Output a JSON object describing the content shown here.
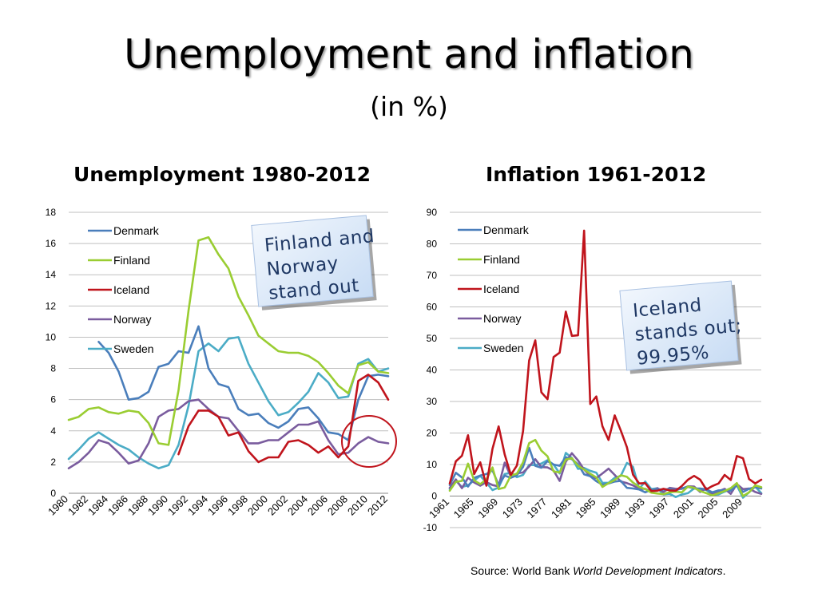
{
  "slide": {
    "title": "Unemployment and inflation",
    "subtitle": "(in %)"
  },
  "source": {
    "prefix": "Source: World Bank ",
    "italic": "World Development Indicators",
    "suffix": "."
  },
  "colors": {
    "Denmark": "#4a7ebb",
    "Finland": "#9acd32",
    "Iceland": "#c0141c",
    "Norway": "#7a5c9e",
    "Sweden": "#4bacc6",
    "grid": "#bfbfbf",
    "callout_bg": "#c8dcf4",
    "circle": "#c0141c"
  },
  "chart_data": [
    {
      "type": "line",
      "title": "Unemployment 1980-2012",
      "ylim": [
        0,
        18
      ],
      "yticks": [
        0,
        2,
        4,
        6,
        8,
        10,
        12,
        14,
        16,
        18
      ],
      "xticks": [
        "1980",
        "1982",
        "1984",
        "1986",
        "1988",
        "1990",
        "1992",
        "1994",
        "1996",
        "1998",
        "2000",
        "2002",
        "2004",
        "2006",
        "2008",
        "2010",
        "2012"
      ],
      "x_start": 1980,
      "x_end": 2012,
      "grid": true,
      "legend": "top-left",
      "annotation": "Finland and Norway stand out",
      "series": [
        {
          "name": "Denmark",
          "start": 1983,
          "values": [
            9.7,
            9.0,
            7.8,
            6.0,
            6.1,
            6.5,
            8.1,
            8.3,
            9.1,
            9.0,
            10.7,
            8.0,
            7.0,
            6.8,
            5.4,
            5.0,
            5.1,
            4.5,
            4.2,
            4.6,
            5.4,
            5.5,
            4.8,
            3.9,
            3.8,
            3.4,
            6.0,
            7.5,
            7.6,
            7.5
          ]
        },
        {
          "name": "Finland",
          "start": 1980,
          "values": [
            4.7,
            4.9,
            5.4,
            5.5,
            5.2,
            5.1,
            5.3,
            5.2,
            4.5,
            3.2,
            3.1,
            6.6,
            11.7,
            16.2,
            16.4,
            15.3,
            14.4,
            12.6,
            11.4,
            10.1,
            9.6,
            9.1,
            9.0,
            9.0,
            8.8,
            8.4,
            7.7,
            6.9,
            6.4,
            8.2,
            8.4,
            7.8,
            7.7
          ]
        },
        {
          "name": "Iceland",
          "start": 1991,
          "values": [
            2.5,
            4.3,
            5.3,
            5.3,
            4.9,
            3.7,
            3.9,
            2.7,
            2.0,
            2.3,
            2.3,
            3.3,
            3.4,
            3.1,
            2.6,
            3.0,
            2.3,
            3.0,
            7.2,
            7.6,
            7.1,
            6.0
          ]
        },
        {
          "name": "Norway",
          "start": 1980,
          "values": [
            1.6,
            2.0,
            2.6,
            3.4,
            3.2,
            2.6,
            1.9,
            2.1,
            3.2,
            4.9,
            5.3,
            5.4,
            5.9,
            6.0,
            5.4,
            4.9,
            4.8,
            4.0,
            3.2,
            3.2,
            3.4,
            3.4,
            3.9,
            4.4,
            4.4,
            4.6,
            3.4,
            2.5,
            2.6,
            3.2,
            3.6,
            3.3,
            3.2
          ]
        },
        {
          "name": "Sweden",
          "start": 1980,
          "values": [
            2.2,
            2.8,
            3.5,
            3.9,
            3.5,
            3.1,
            2.8,
            2.3,
            1.9,
            1.6,
            1.8,
            3.1,
            5.6,
            9.1,
            9.6,
            9.1,
            9.9,
            10.0,
            8.3,
            7.1,
            5.9,
            5.0,
            5.2,
            5.8,
            6.5,
            7.7,
            7.1,
            6.1,
            6.2,
            8.3,
            8.6,
            7.8,
            8.0
          ]
        }
      ]
    },
    {
      "type": "line",
      "title": "Inflation 1961-2012",
      "ylim": [
        -10,
        90
      ],
      "yticks": [
        -10,
        0,
        10,
        20,
        30,
        40,
        50,
        60,
        70,
        80,
        90
      ],
      "xticks": [
        "1961",
        "1965",
        "1969",
        "1973",
        "1977",
        "1981",
        "1985",
        "1989",
        "1993",
        "1997",
        "2001",
        "2005",
        "2009"
      ],
      "x_start": 1961,
      "x_end": 2012,
      "grid": true,
      "legend": "top-left",
      "annotation": "Iceland stands out; 99.95%",
      "series": [
        {
          "name": "Denmark",
          "start": 1961,
          "values": [
            3.5,
            7.4,
            5.9,
            3.0,
            5.8,
            6.5,
            7.0,
            8.2,
            3.5,
            6.5,
            5.8,
            6.6,
            9.3,
            15.3,
            9.6,
            9.0,
            11.1,
            10.0,
            9.6,
            12.3,
            11.7,
            10.1,
            6.9,
            6.3,
            4.7,
            3.6,
            4.0,
            4.6,
            4.8,
            2.6,
            2.4,
            2.1,
            1.2,
            2.0,
            2.1,
            2.1,
            2.2,
            1.8,
            2.5,
            2.9,
            2.4,
            2.4,
            2.1,
            1.2,
            1.8,
            1.9,
            1.7,
            3.4,
            1.3,
            2.3,
            2.8,
            2.4
          ]
        },
        {
          "name": "Finland",
          "start": 1961,
          "values": [
            1.7,
            4.5,
            4.8,
            10.3,
            5.0,
            3.8,
            5.3,
            9.1,
            2.2,
            2.7,
            6.5,
            7.1,
            10.7,
            16.8,
            17.8,
            14.4,
            12.6,
            7.8,
            7.5,
            11.6,
            12.0,
            9.6,
            8.4,
            7.1,
            5.9,
            2.9,
            4.1,
            5.1,
            6.6,
            6.1,
            4.3,
            2.9,
            2.2,
            1.1,
            0.8,
            0.6,
            1.2,
            1.4,
            1.2,
            3.0,
            2.6,
            1.6,
            0.9,
            0.2,
            0.9,
            1.6,
            2.5,
            4.1,
            0.0,
            1.2,
            3.4,
            2.8
          ]
        },
        {
          "name": "Iceland",
          "start": 1961,
          "values": [
            4.0,
            11.0,
            12.8,
            19.3,
            7.0,
            10.7,
            3.3,
            15.0,
            22.1,
            13.2,
            6.7,
            9.7,
            20.6,
            43.0,
            49.4,
            32.9,
            30.7,
            44.1,
            45.5,
            58.5,
            50.8,
            51.0,
            84.2,
            29.2,
            31.6,
            22.1,
            17.8,
            25.6,
            20.8,
            15.5,
            6.8,
            4.0,
            4.1,
            1.6,
            1.7,
            2.3,
            1.8,
            1.7,
            3.2,
            5.2,
            6.4,
            5.2,
            2.1,
            3.2,
            4.0,
            6.7,
            5.1,
            12.7,
            12.0,
            5.4,
            4.0,
            5.2
          ]
        },
        {
          "name": "Norway",
          "start": 1961,
          "values": [
            2.6,
            5.3,
            2.5,
            5.8,
            4.3,
            3.3,
            4.4,
            3.5,
            3.1,
            10.6,
            6.2,
            7.2,
            7.5,
            9.4,
            11.7,
            9.2,
            9.1,
            8.1,
            4.8,
            10.9,
            13.6,
            11.3,
            8.4,
            6.3,
            5.7,
            7.2,
            8.7,
            6.7,
            4.6,
            4.1,
            3.4,
            2.3,
            2.3,
            1.4,
            2.5,
            1.3,
            2.6,
            2.3,
            2.3,
            3.1,
            3.0,
            1.3,
            2.5,
            0.5,
            1.5,
            2.3,
            0.7,
            3.8,
            2.2,
            2.4,
            1.3,
            0.7
          ]
        },
        {
          "name": "Sweden",
          "start": 1961,
          "values": [
            2.2,
            4.8,
            2.9,
            3.4,
            5.0,
            6.4,
            4.3,
            1.9,
            2.7,
            7.0,
            7.4,
            6.0,
            6.7,
            9.9,
            9.8,
            10.3,
            11.4,
            10.0,
            7.2,
            13.7,
            12.1,
            8.6,
            8.9,
            8.0,
            7.4,
            4.2,
            4.2,
            5.8,
            6.4,
            10.5,
            9.3,
            2.3,
            4.6,
            2.2,
            2.5,
            0.5,
            0.7,
            -0.3,
            0.5,
            0.9,
            2.4,
            2.2,
            1.9,
            0.4,
            0.5,
            1.4,
            2.2,
            3.4,
            -0.5,
            1.2,
            3.0,
            0.9
          ]
        }
      ]
    }
  ]
}
